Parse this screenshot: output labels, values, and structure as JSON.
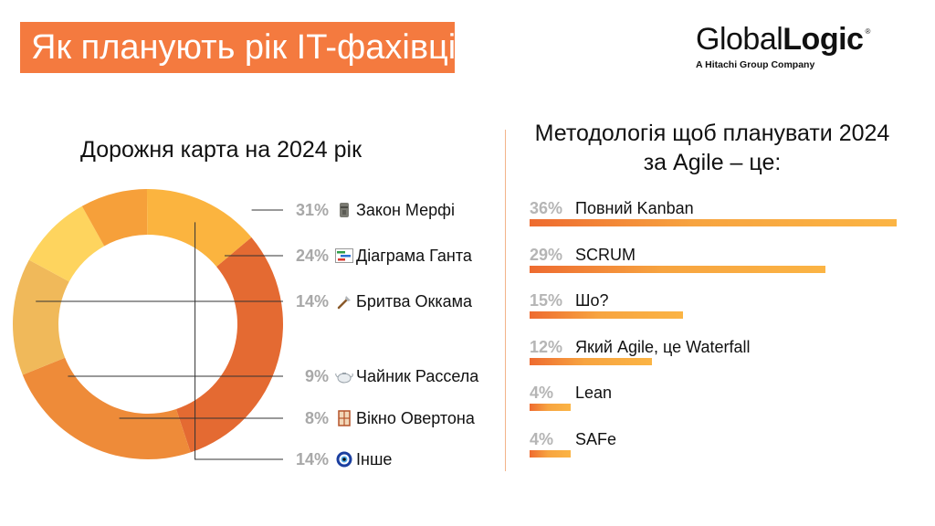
{
  "header": {
    "title": "Як планують рік IT-фахівці",
    "logo_regular": "Global",
    "logo_bold": "Logic",
    "logo_reg": "®",
    "logo_sub": "A Hitachi Group Company"
  },
  "colors": {
    "accent": "#f47a3f",
    "divider": "#f3b48a",
    "pct_text": "#a8a8a8"
  },
  "chart_data": [
    {
      "type": "pie",
      "title": "Дорожня карта на 2024 рік",
      "slices": [
        {
          "label": "Закон Мерфі",
          "value": 31,
          "pct_text": "31%",
          "icon": "moai-icon",
          "color": "#e46a32"
        },
        {
          "label": "Діаграма Ганта",
          "value": 24,
          "pct_text": "24%",
          "icon": "gantt-chart-icon",
          "color": "#ee8b39"
        },
        {
          "label": "Бритва Оккама",
          "value": 14,
          "pct_text": "14%",
          "icon": "razor-icon",
          "color": "#f0b95a"
        },
        {
          "label": "Чайник Рассела",
          "value": 9,
          "pct_text": "9%",
          "icon": "teapot-icon",
          "color": "#fed45e"
        },
        {
          "label": "Вікно Овертона",
          "value": 8,
          "pct_text": "8%",
          "icon": "window-icon",
          "color": "#f6a03a"
        },
        {
          "label": "Інше",
          "value": 14,
          "pct_text": "14%",
          "icon": "nazar-eye-icon",
          "color": "#fbb43f"
        }
      ]
    },
    {
      "type": "bar",
      "title": "Методологія щоб планувати 2024 за Agile – це:",
      "categories": [
        "Повний Kanban",
        "SCRUM",
        "Шо?",
        "Який Agile, це Waterfall",
        "Lean",
        "SAFe"
      ],
      "values": [
        36,
        29,
        15,
        12,
        4,
        4
      ],
      "pct_text": [
        "36%",
        "29%",
        "15%",
        "12%",
        "4%",
        "4%"
      ],
      "xlim": [
        0,
        36
      ]
    }
  ]
}
